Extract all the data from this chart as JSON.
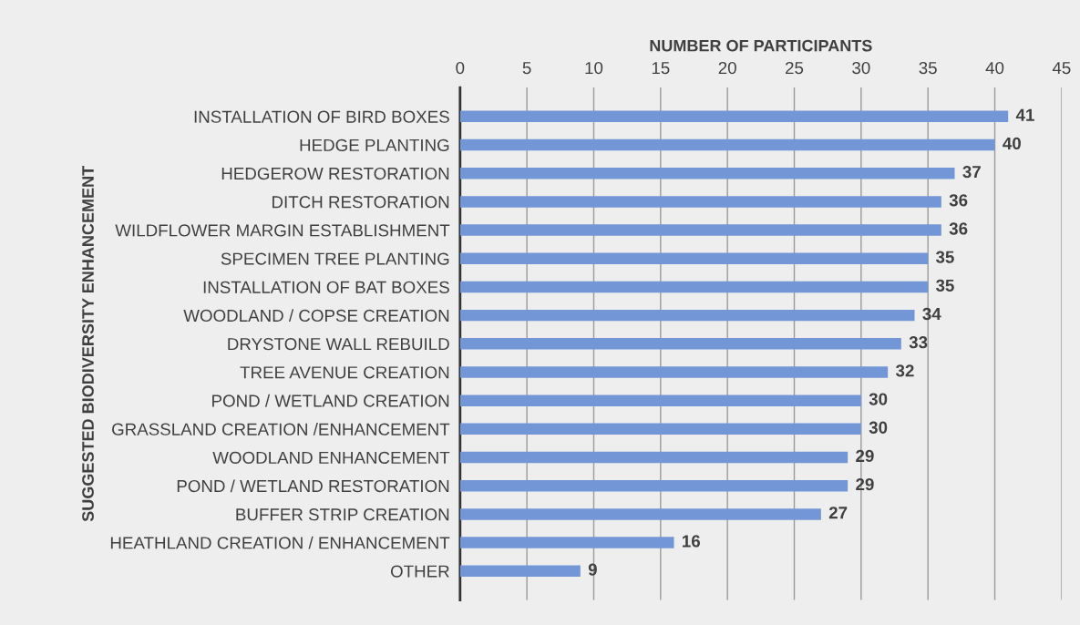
{
  "chart_data": {
    "type": "bar",
    "orientation": "horizontal",
    "xlabel": "NUMBER OF PARTICIPANTS",
    "ylabel": "SUGGESTED BIODIVERSITY ENHANCEMENT",
    "categories": [
      "INSTALLATION OF BIRD BOXES",
      "HEDGE PLANTING",
      "HEDGEROW RESTORATION",
      "DITCH RESTORATION",
      "WILDFLOWER MARGIN ESTABLISHMENT",
      "SPECIMEN TREE PLANTING",
      "INSTALLATION OF BAT BOXES",
      "WOODLAND / COPSE CREATION",
      "DRYSTONE WALL REBUILD",
      "TREE AVENUE CREATION",
      "POND / WETLAND CREATION",
      "GRASSLAND CREATION /ENHANCEMENT",
      "WOODLAND ENHANCEMENT",
      "POND / WETLAND RESTORATION",
      "BUFFER STRIP CREATION",
      "HEATHLAND CREATION / ENHANCEMENT",
      "OTHER"
    ],
    "values": [
      41,
      40,
      37,
      36,
      36,
      35,
      35,
      34,
      33,
      32,
      30,
      30,
      29,
      29,
      27,
      16,
      9
    ],
    "color": "#7397d6",
    "xlim": [
      0,
      45
    ],
    "xticks": [
      0,
      5,
      10,
      15,
      20,
      25,
      30,
      35,
      40,
      45
    ],
    "grid": "x",
    "data_labels": true
  }
}
